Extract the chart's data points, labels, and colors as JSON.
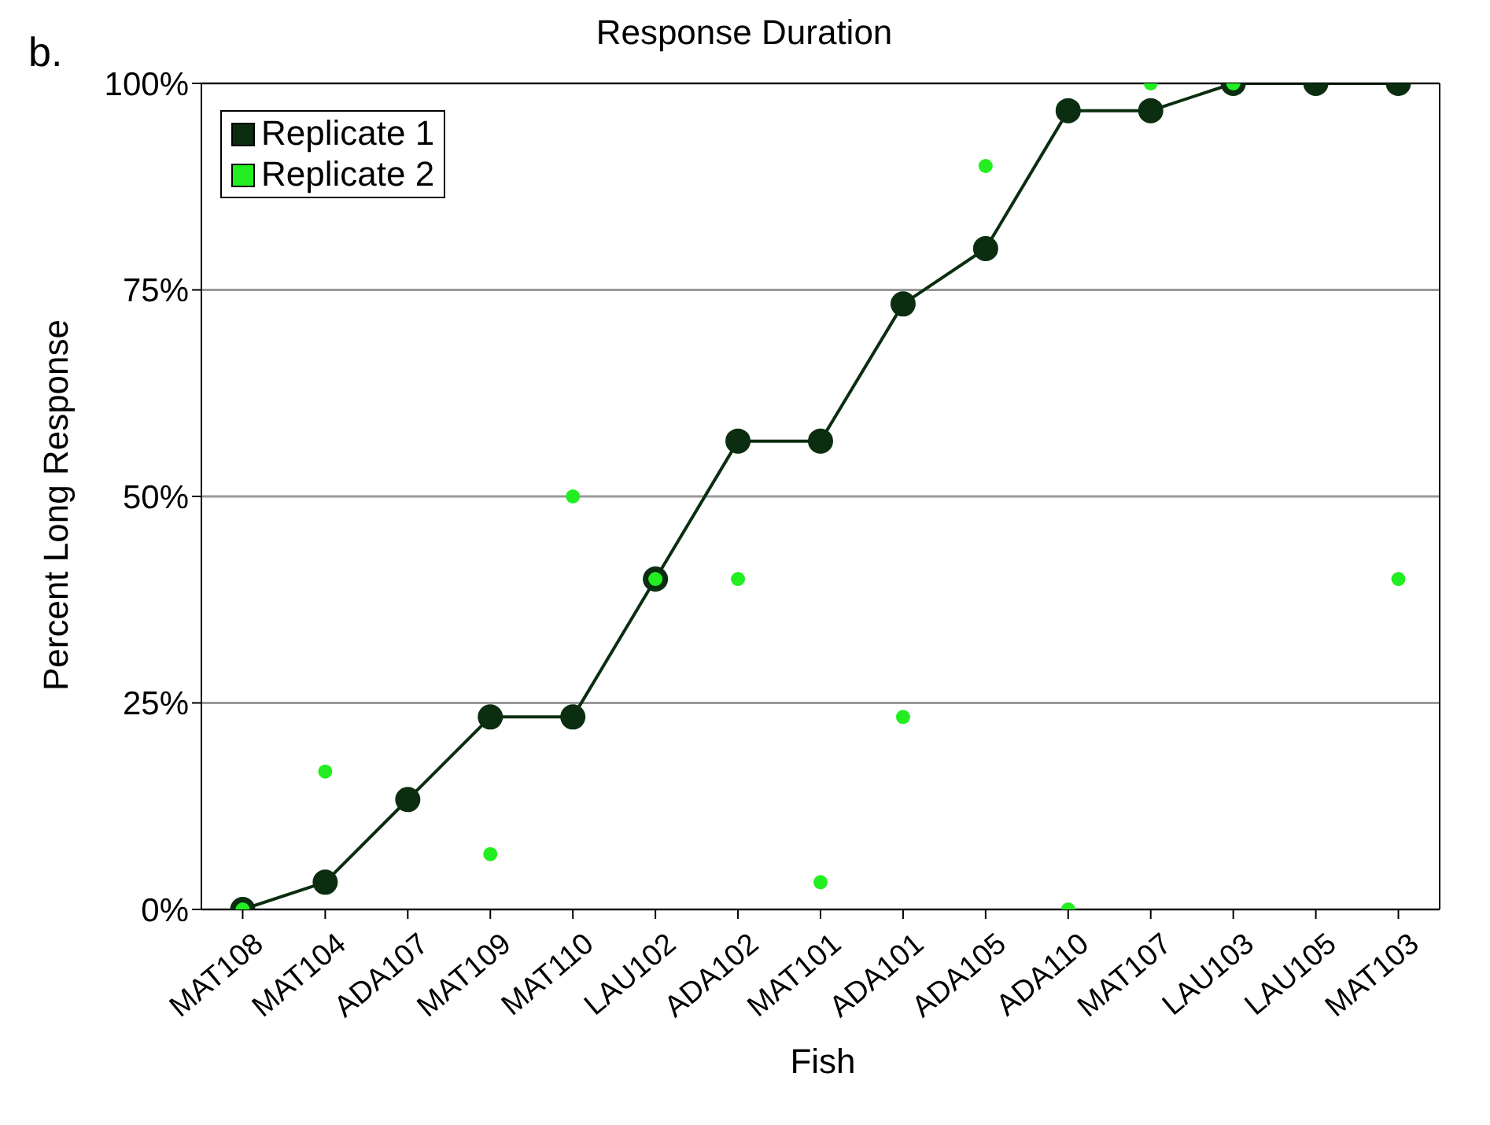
{
  "chart_data": {
    "type": "line",
    "title": "Response Duration",
    "xlabel": "Fish",
    "ylabel": "Percent Long Response",
    "annotations": [
      "b."
    ],
    "categories": [
      "MAT108",
      "MAT104",
      "ADA107",
      "MAT109",
      "MAT110",
      "LAU102",
      "ADA102",
      "MAT101",
      "ADA101",
      "ADA105",
      "ADA110",
      "MAT107",
      "LAU103",
      "LAU105",
      "MAT103"
    ],
    "series": [
      {
        "name": "Replicate 1",
        "color": "#0b2e10",
        "values": [
          0,
          3.3,
          13.3,
          23.3,
          23.3,
          40,
          56.7,
          56.7,
          73.3,
          80,
          96.7,
          96.7,
          100,
          100,
          100
        ]
      },
      {
        "name": "Replicate 2",
        "type": "scatter",
        "color": "#22ee22",
        "values": [
          0,
          16.7,
          null,
          6.7,
          50,
          40,
          40,
          3.3,
          23.3,
          90,
          0,
          100,
          100,
          null,
          40
        ]
      }
    ],
    "ylim": [
      0,
      100
    ],
    "yticks": [
      {
        "value": 0,
        "label": "0%"
      },
      {
        "value": 25,
        "label": "25%"
      },
      {
        "value": 50,
        "label": "50%"
      },
      {
        "value": 75,
        "label": "75%"
      },
      {
        "value": 100,
        "label": "100%"
      }
    ],
    "grid": "y",
    "legend": "top left",
    "marker": "circle",
    "line_style": "solid"
  }
}
